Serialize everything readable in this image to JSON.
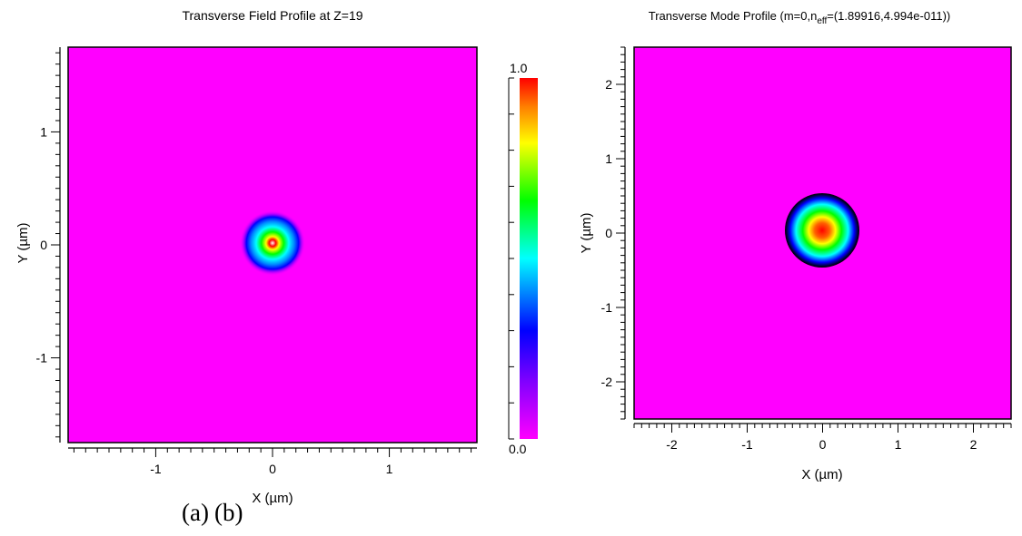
{
  "chart_data": [
    {
      "type": "heatmap",
      "title": "Transverse Field Profile at Z=19",
      "xlabel": "X (µm)",
      "ylabel": "Y (µm)",
      "xlim": [
        -1.75,
        1.75
      ],
      "ylim": [
        -1.75,
        1.75
      ],
      "x_ticks": [
        "-1",
        "0",
        "1"
      ],
      "x_tick_values": [
        -1,
        0,
        1
      ],
      "y_ticks": [
        "1",
        "0",
        "-1"
      ],
      "y_tick_values": [
        1,
        0,
        -1
      ],
      "field": {
        "shape": "gaussian-spot",
        "center": [
          0,
          0
        ],
        "peak": 1.0,
        "radius": 0.3
      },
      "background_color": "#ff00ff",
      "colorbar": {
        "min_label": "0.0",
        "max_label": "1.0",
        "min": 0.0,
        "max": 1.0,
        "colors": [
          "#ff00ff",
          "#0000ff",
          "#00ffff",
          "#00ff00",
          "#ffff00",
          "#ff0000"
        ]
      },
      "caption": "(a)"
    },
    {
      "type": "heatmap",
      "title": "Transverse Mode Profile (m=0,n",
      "title_subscript": "eff",
      "title_suffix": "=(1.89916,4.994e-011))",
      "xlabel": "X (µm)",
      "ylabel": "Y (µm)",
      "xlim": [
        -2.5,
        2.5
      ],
      "ylim": [
        -2.5,
        2.5
      ],
      "x_ticks": [
        "-2",
        "-1",
        "0",
        "1",
        "2"
      ],
      "x_tick_values": [
        -2,
        -1,
        0,
        1,
        2
      ],
      "y_ticks": [
        "2",
        "1",
        "0",
        "-1",
        "-2"
      ],
      "y_tick_values": [
        2,
        1,
        0,
        -1,
        -2
      ],
      "field": {
        "shape": "gaussian-mode",
        "center": [
          0,
          0
        ],
        "peak": 1.0,
        "radius": 0.5
      },
      "background_color": "#ff00ff",
      "caption": "(b)"
    }
  ]
}
